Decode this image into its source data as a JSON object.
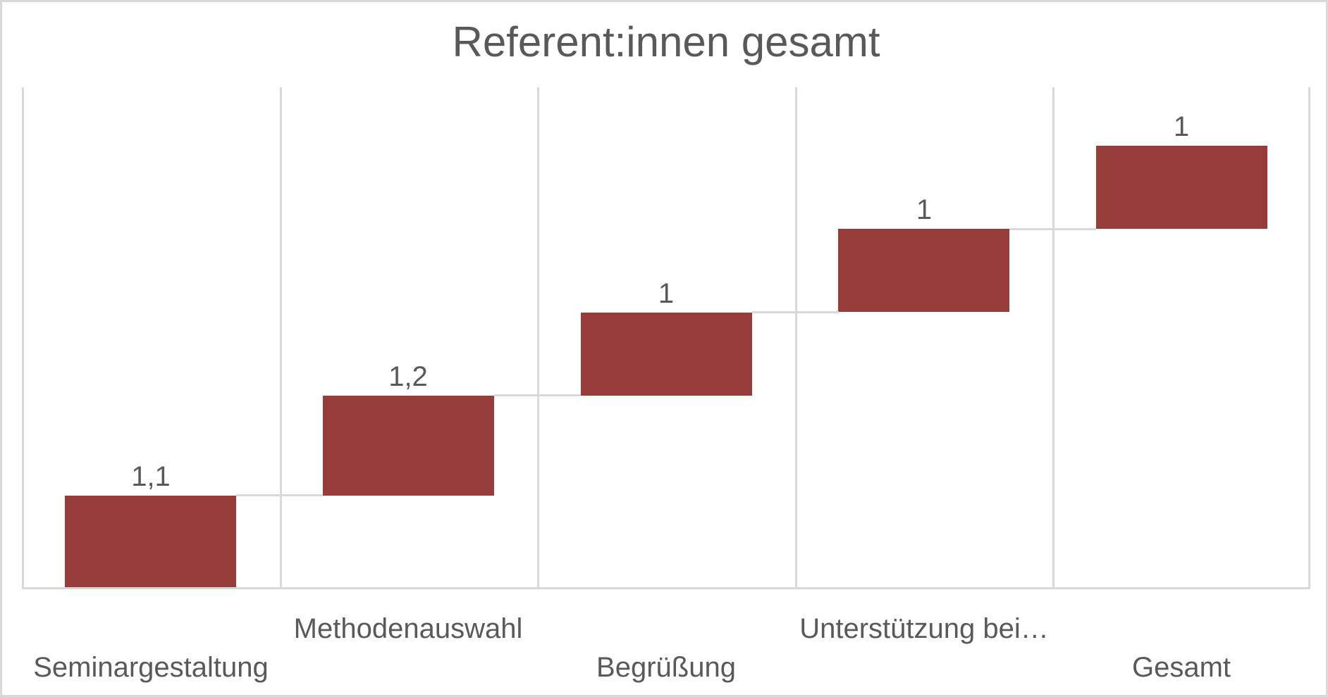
{
  "chart_data": {
    "type": "bar",
    "subtype": "waterfall",
    "title": "Referent:innen gesamt",
    "categories": [
      "Seminargestaltung",
      "Methodenauswahl",
      "Begrüßung",
      "Unterstützung bei…",
      "Gesamt"
    ],
    "values": [
      1.1,
      1.2,
      1.0,
      1.0,
      1.0
    ],
    "value_labels": [
      "1,1",
      "1,2",
      "1",
      "1",
      "1"
    ],
    "stacking": "cumulative-floating",
    "xlabel": "",
    "ylabel": "",
    "ylim": [
      0,
      6
    ],
    "value_axis_visible": false,
    "grid": "vertical-category-boundaries",
    "legend": "none",
    "staggered_category_labels": true,
    "colors": {
      "bar_fill": "#963d3a",
      "gridline": "#d9d9d9",
      "connector": "#d9d9d9",
      "axis_line": "#d9d9d9",
      "text": "#595959",
      "frame_border": "#d9d9d9",
      "background": "#ffffff"
    }
  }
}
